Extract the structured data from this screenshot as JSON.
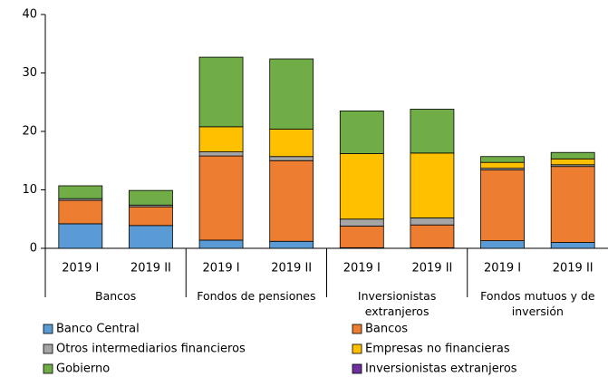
{
  "chart_data": {
    "type": "stacked-bar",
    "categories": [
      "2019 I",
      "2019 II",
      "2019 I",
      "2019 II",
      "2019 I",
      "2019 II",
      "2019 I",
      "2019 II"
    ],
    "groups": [
      "Bancos",
      "Fondos de pensiones",
      "Inversionistas extranjeros",
      "Fondos mutuos y de inversión"
    ],
    "series": [
      {
        "name": "Banco Central",
        "color": "#5b9bd5",
        "values": [
          4.2,
          3.9,
          1.4,
          1.2,
          0.1,
          0.1,
          1.3,
          1.0
        ]
      },
      {
        "name": "Bancos",
        "color": "#ed7d31",
        "values": [
          4.0,
          3.2,
          14.4,
          13.8,
          3.7,
          3.9,
          12.1,
          13.0
        ]
      },
      {
        "name": "Otros intermediarios financieros",
        "color": "#a5a5a5",
        "values": [
          0.3,
          0.3,
          0.7,
          0.7,
          1.2,
          1.2,
          0.3,
          0.3
        ]
      },
      {
        "name": "Empresas no financieras",
        "color": "#ffc000",
        "values": [
          0,
          0,
          4.3,
          4.7,
          11.2,
          11.1,
          1.0,
          1.0
        ]
      },
      {
        "name": "Gobierno",
        "color": "#70ad47",
        "values": [
          2.2,
          2.5,
          11.9,
          12.0,
          7.3,
          7.5,
          1.0,
          1.1
        ]
      },
      {
        "name": "Inversionistas extranjeros",
        "color": "#7030a0",
        "values": [
          0,
          0,
          0,
          0,
          0,
          0,
          0,
          0
        ]
      }
    ],
    "ylim": [
      0,
      40
    ],
    "yticks": [
      0,
      10,
      20,
      30,
      40
    ]
  }
}
